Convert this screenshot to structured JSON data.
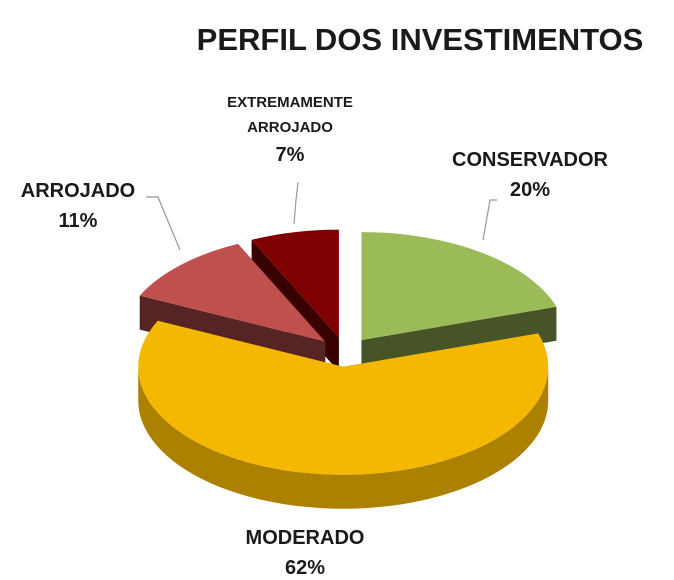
{
  "chart_data": {
    "type": "pie",
    "title": "PERFIL DOS INVESTIMENTOS",
    "categories": [
      "CONSERVADOR",
      "MODERADO",
      "ARROJADO",
      "EXTREMAMENTE ARROJADO"
    ],
    "values": [
      20,
      62,
      11,
      7
    ],
    "value_labels": [
      "20%",
      "62%",
      "11%",
      "7%"
    ],
    "colors": [
      "#9bbb59",
      "#f5b800",
      "#c0504d",
      "#7f0000"
    ]
  }
}
